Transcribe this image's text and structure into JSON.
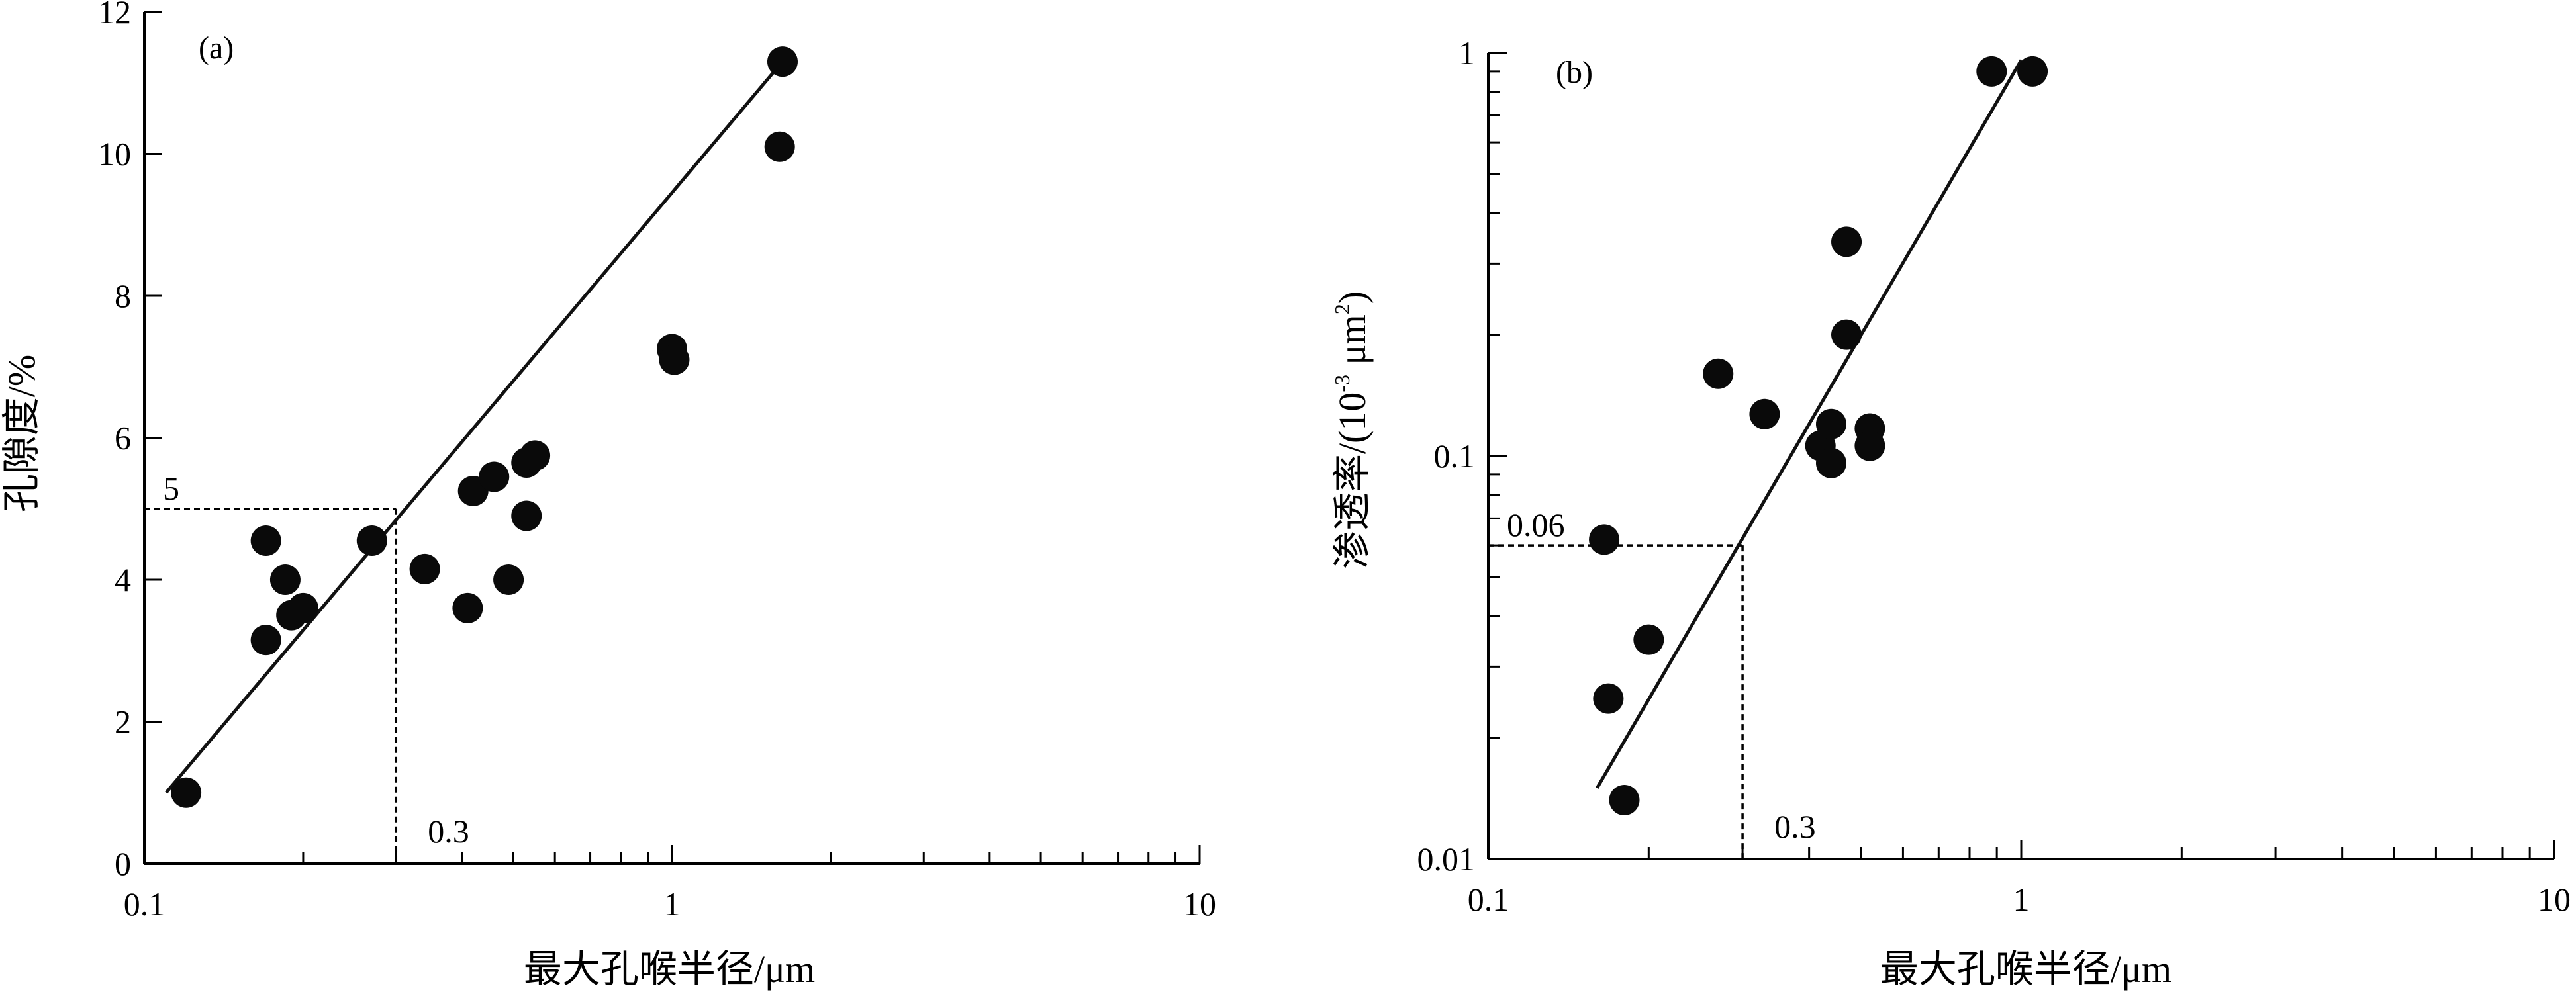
{
  "chart_data": [
    {
      "panel_label": "(a)",
      "type": "scatter",
      "x_scale": "log",
      "xlim": [
        0.1,
        10
      ],
      "ylim": [
        0,
        12
      ],
      "xlabel": "最大孔喉半径/μm",
      "ylabel": "孔隙度/%",
      "x_ticks": [
        "0.1",
        "1",
        "10"
      ],
      "y_ticks": [
        "0",
        "2",
        "4",
        "6",
        "8",
        "10",
        "12"
      ],
      "grid": false,
      "points": [
        {
          "x": 0.12,
          "y": 1.0
        },
        {
          "x": 0.17,
          "y": 4.55
        },
        {
          "x": 0.17,
          "y": 3.15
        },
        {
          "x": 0.185,
          "y": 4.0
        },
        {
          "x": 0.19,
          "y": 3.5
        },
        {
          "x": 0.2,
          "y": 3.6
        },
        {
          "x": 0.27,
          "y": 4.55
        },
        {
          "x": 0.34,
          "y": 4.15
        },
        {
          "x": 0.41,
          "y": 3.6
        },
        {
          "x": 0.42,
          "y": 5.25
        },
        {
          "x": 0.46,
          "y": 5.45
        },
        {
          "x": 0.49,
          "y": 4.0
        },
        {
          "x": 0.53,
          "y": 5.65
        },
        {
          "x": 0.53,
          "y": 4.9
        },
        {
          "x": 0.55,
          "y": 5.75
        },
        {
          "x": 1.0,
          "y": 7.25
        },
        {
          "x": 1.01,
          "y": 7.1
        },
        {
          "x": 1.6,
          "y": 10.1
        },
        {
          "x": 1.62,
          "y": 11.3
        }
      ],
      "fit_line": {
        "x": [
          0.11,
          1.62
        ],
        "y": [
          1.0,
          11.3
        ]
      },
      "reference": {
        "x": 0.3,
        "y": 5,
        "x_label": "0.3",
        "y_label": "5"
      }
    },
    {
      "panel_label": "(b)",
      "type": "scatter",
      "x_scale": "log",
      "y_scale": "log",
      "xlim": [
        0.1,
        10
      ],
      "ylim": [
        0.01,
        1
      ],
      "xlabel": "最大孔喉半径/μm",
      "ylabel_main": "渗透率/(10",
      "ylabel_exp1": "-3",
      "ylabel_mid": " μm",
      "ylabel_exp2": "2",
      "ylabel_end": ")",
      "x_ticks": [
        "0.1",
        "1",
        "10"
      ],
      "y_ticks": [
        "0.01",
        "0.1",
        "1"
      ],
      "grid": false,
      "points": [
        {
          "x": 0.165,
          "y": 0.062
        },
        {
          "x": 0.168,
          "y": 0.025
        },
        {
          "x": 0.18,
          "y": 0.014
        },
        {
          "x": 0.2,
          "y": 0.035
        },
        {
          "x": 0.27,
          "y": 0.16
        },
        {
          "x": 0.33,
          "y": 0.127
        },
        {
          "x": 0.42,
          "y": 0.106
        },
        {
          "x": 0.44,
          "y": 0.12
        },
        {
          "x": 0.44,
          "y": 0.096
        },
        {
          "x": 0.47,
          "y": 0.34
        },
        {
          "x": 0.47,
          "y": 0.2
        },
        {
          "x": 0.52,
          "y": 0.117
        },
        {
          "x": 0.52,
          "y": 0.106
        },
        {
          "x": 0.88,
          "y": 0.9
        },
        {
          "x": 1.05,
          "y": 0.9
        }
      ],
      "fit_line": {
        "x": [
          0.16,
          1.0
        ],
        "y": [
          0.015,
          0.96
        ]
      },
      "reference": {
        "x": 0.3,
        "y": 0.06,
        "x_label": "0.3",
        "y_label": "0.06"
      }
    }
  ]
}
